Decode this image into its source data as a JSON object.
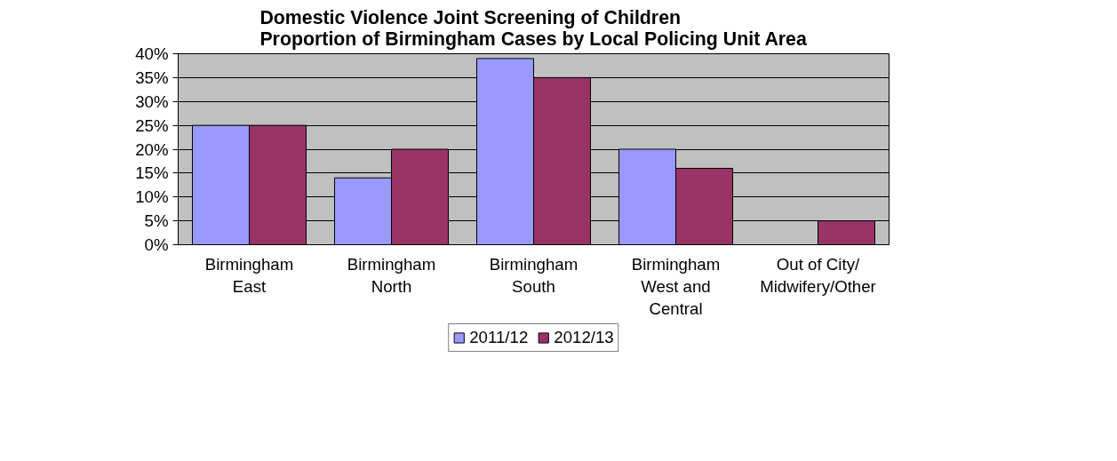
{
  "chart_data": {
    "type": "bar",
    "title": "Domestic Violence Joint Screening of Children\nProportion of Birmingham Cases by Local Policing Unit Area",
    "categories": [
      "Birmingham East",
      "Birmingham North",
      "Birmingham South",
      "Birmingham West and Central",
      "Out of City/ Midwifery/Other"
    ],
    "series": [
      {
        "name": "2011/12",
        "color": "#9999ff",
        "values": [
          25,
          14,
          39,
          20,
          null
        ]
      },
      {
        "name": "2012/13",
        "color": "#993366",
        "values": [
          25,
          20,
          35,
          16,
          5
        ]
      }
    ],
    "ylim": [
      0,
      40
    ],
    "yticks": [
      {
        "value": 0,
        "label": "0%"
      },
      {
        "value": 5,
        "label": "5%"
      },
      {
        "value": 10,
        "label": "10%"
      },
      {
        "value": 15,
        "label": "15%"
      },
      {
        "value": 20,
        "label": "20%"
      },
      {
        "value": 25,
        "label": "25%"
      },
      {
        "value": 30,
        "label": "30%"
      },
      {
        "value": 35,
        "label": "35%"
      },
      {
        "value": 40,
        "label": "40%"
      }
    ],
    "grid": "y",
    "legend": "bottom"
  }
}
